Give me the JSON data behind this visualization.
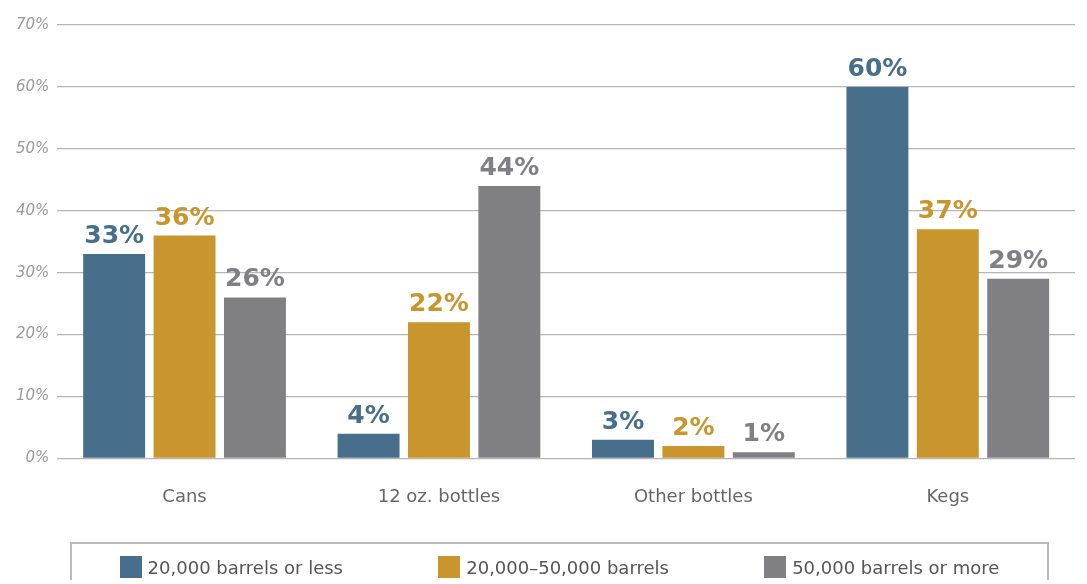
{
  "chart_data": {
    "type": "bar",
    "categories": [
      "Cans",
      "12 oz. bottles",
      "Other bottles",
      "Kegs"
    ],
    "series": [
      {
        "name": "20,000 barrels or less",
        "color": "#476e8a",
        "values": [
          33,
          4,
          3,
          60
        ],
        "value_labels": [
          "33%",
          "4%",
          "3%",
          "60%"
        ]
      },
      {
        "name": "20,000–50,000 barrels",
        "color": "#c9952d",
        "values": [
          36,
          22,
          2,
          37
        ],
        "value_labels": [
          "36%",
          "22%",
          "2%",
          "37%"
        ]
      },
      {
        "name": "50,000 barrels or more",
        "color": "#808084",
        "values": [
          26,
          44,
          1,
          29
        ],
        "value_labels": [
          "26%",
          "44%",
          "1%",
          "29%"
        ]
      }
    ],
    "ylim": [
      0,
      70
    ],
    "yticks": [
      {
        "value": 0,
        "label": "0%"
      },
      {
        "value": 10,
        "label": "10%"
      },
      {
        "value": 20,
        "label": "20%"
      },
      {
        "value": 30,
        "label": "30%"
      },
      {
        "value": 40,
        "label": "40%"
      },
      {
        "value": 50,
        "label": "50%"
      },
      {
        "value": 60,
        "label": "60%"
      },
      {
        "value": 70,
        "label": "70%"
      }
    ],
    "grid": "y",
    "legend": "bottom"
  }
}
